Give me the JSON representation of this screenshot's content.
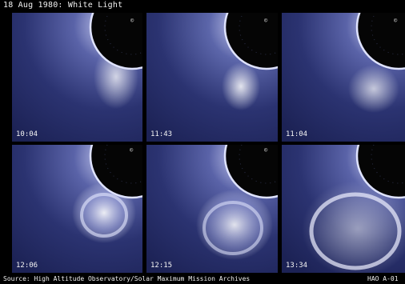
{
  "header": {
    "title": "18 Aug 1980: White Light"
  },
  "panels": [
    {
      "timestamp": "10:04"
    },
    {
      "timestamp": "11:43"
    },
    {
      "timestamp": "11:04"
    },
    {
      "timestamp": "12:06"
    },
    {
      "timestamp": "12:15"
    },
    {
      "timestamp": "13:34"
    }
  ],
  "footer": {
    "source": "Source: High Altitude Observatory/Solar Maximum Mission Archives",
    "identifier": "HAO A-01"
  },
  "colors": {
    "background": "#000000",
    "sky_blue": "#2a3470",
    "corona_white": "#e8eaff",
    "occulter": "#050505"
  }
}
